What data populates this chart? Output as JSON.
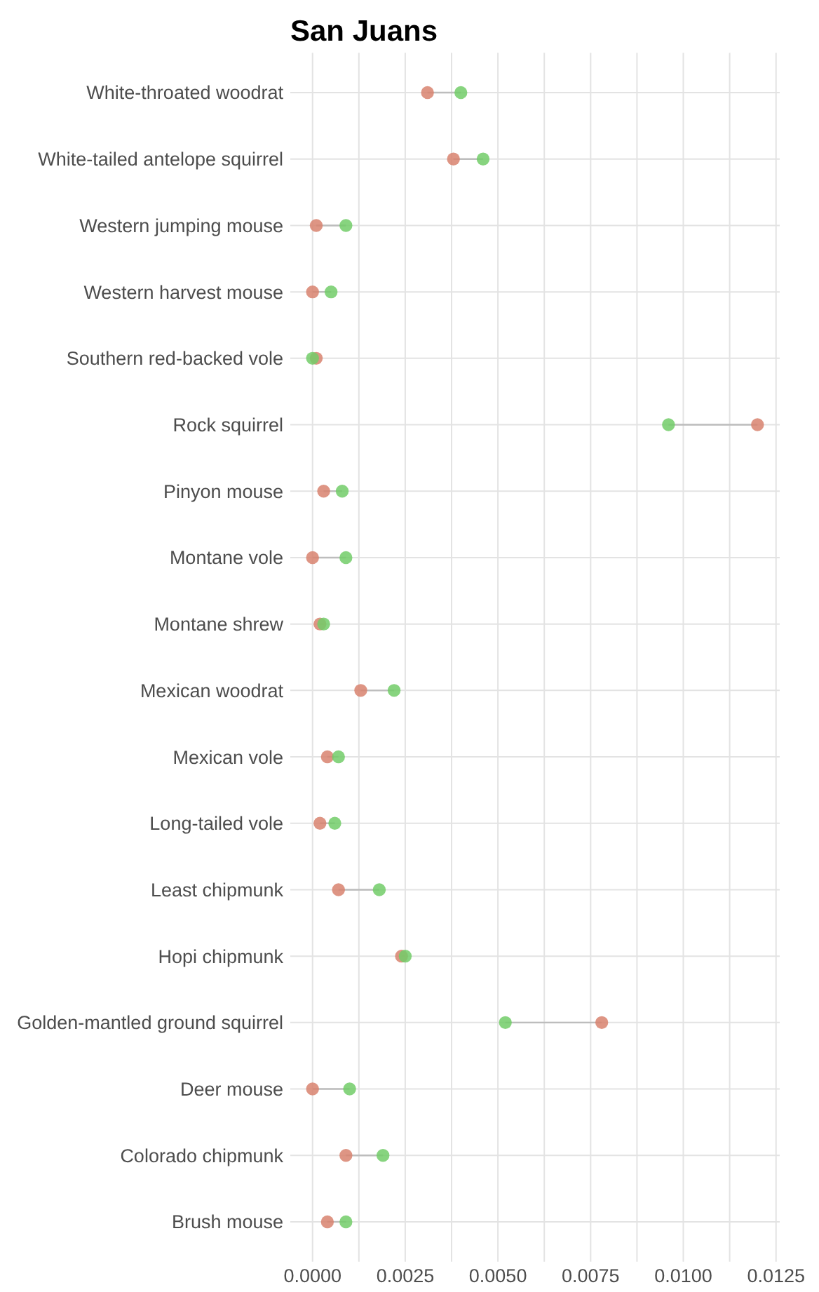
{
  "chart_data": {
    "type": "scatter",
    "title": "San Juans",
    "orientation": "horizontal",
    "categories": [
      "White-throated woodrat",
      "White-tailed antelope squirrel",
      "Western jumping mouse",
      "Western harvest mouse",
      "Southern red-backed vole",
      "Rock squirrel",
      "Pinyon mouse",
      "Montane vole",
      "Montane shrew",
      "Mexican woodrat",
      "Mexican vole",
      "Long-tailed vole",
      "Least chipmunk",
      "Hopi chipmunk",
      "Golden-mantled ground squirrel",
      "Deer mouse",
      "Colorado chipmunk",
      "Brush mouse"
    ],
    "series": [
      {
        "color": "#d8826f",
        "values": [
          0.0031,
          0.0038,
          0.0001,
          0.0,
          0.0001,
          0.012,
          0.0003,
          0.0,
          0.0002,
          0.0013,
          0.0004,
          0.0002,
          0.0007,
          0.0024,
          0.0078,
          0.0,
          0.0009,
          0.0004
        ]
      },
      {
        "color": "#72cd69",
        "values": [
          0.004,
          0.0046,
          0.0009,
          0.0005,
          0.0,
          0.0096,
          0.0008,
          0.0009,
          0.0003,
          0.0022,
          0.0007,
          0.0006,
          0.0018,
          0.0025,
          0.0052,
          0.001,
          0.0019,
          0.0009
        ]
      }
    ],
    "xlim": [
      -0.0006,
      0.0126
    ],
    "xticks": [
      {
        "value": 0,
        "label": "0.0000"
      },
      {
        "value": 0.00125,
        "label": null
      },
      {
        "value": 0.0025,
        "label": "0.0025"
      },
      {
        "value": 0.00375,
        "label": null
      },
      {
        "value": 0.005,
        "label": "0.0050"
      },
      {
        "value": 0.00625,
        "label": null
      },
      {
        "value": 0.0075,
        "label": "0.0075"
      },
      {
        "value": 0.00875,
        "label": null
      },
      {
        "value": 0.01,
        "label": "0.0100"
      },
      {
        "value": 0.01125,
        "label": null
      },
      {
        "value": 0.0125,
        "label": "0.0125"
      }
    ],
    "grid": true,
    "marker": "circle"
  }
}
